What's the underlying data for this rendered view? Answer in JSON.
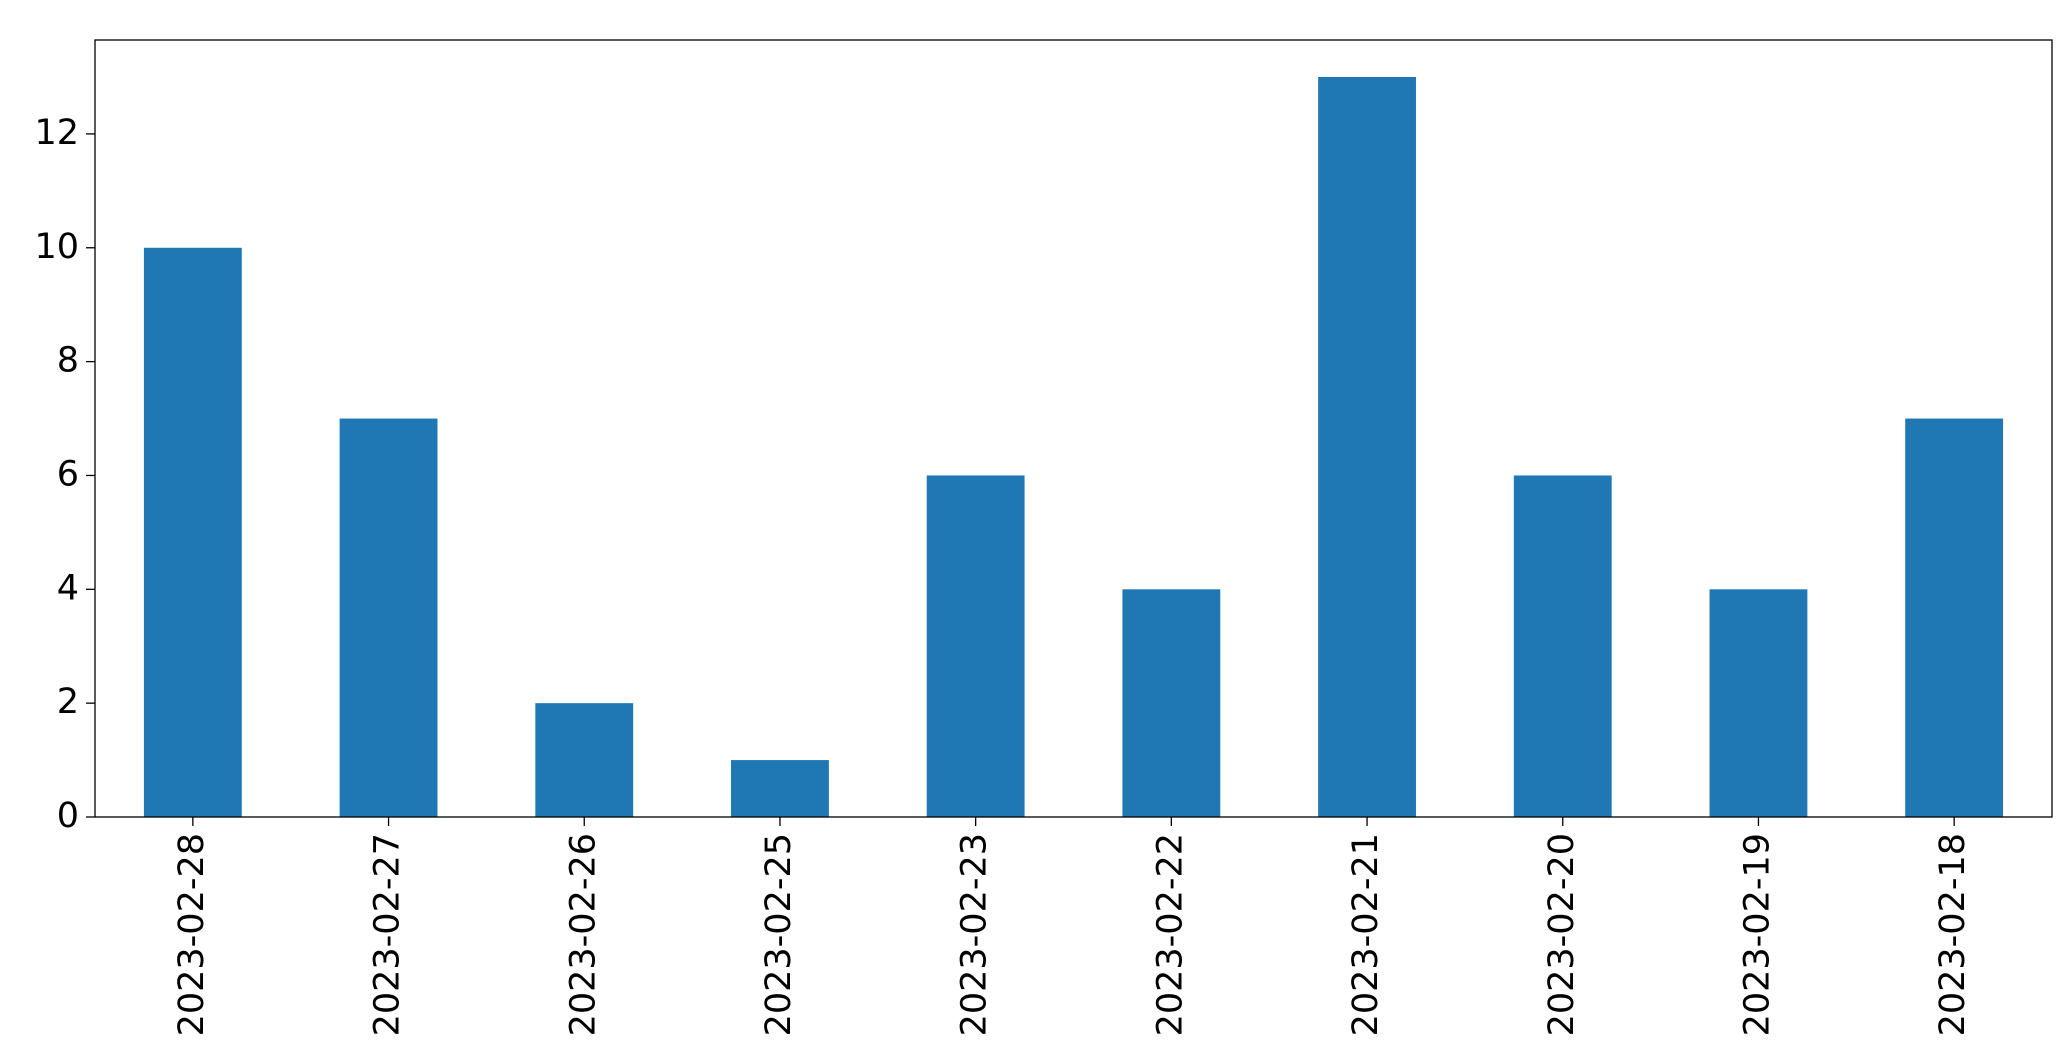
{
  "chart_data": {
    "type": "bar",
    "categories": [
      "2023-02-28",
      "2023-02-27",
      "2023-02-26",
      "2023-02-25",
      "2023-02-23",
      "2023-02-22",
      "2023-02-21",
      "2023-02-20",
      "2023-02-19",
      "2023-02-18"
    ],
    "values": [
      10,
      7,
      2,
      1,
      6,
      4,
      13,
      6,
      4,
      7
    ],
    "color": "#1f77b4",
    "ylim": [
      0,
      13.65
    ],
    "yticks": [
      0,
      2,
      4,
      6,
      8,
      10,
      12
    ],
    "grid": false
  }
}
